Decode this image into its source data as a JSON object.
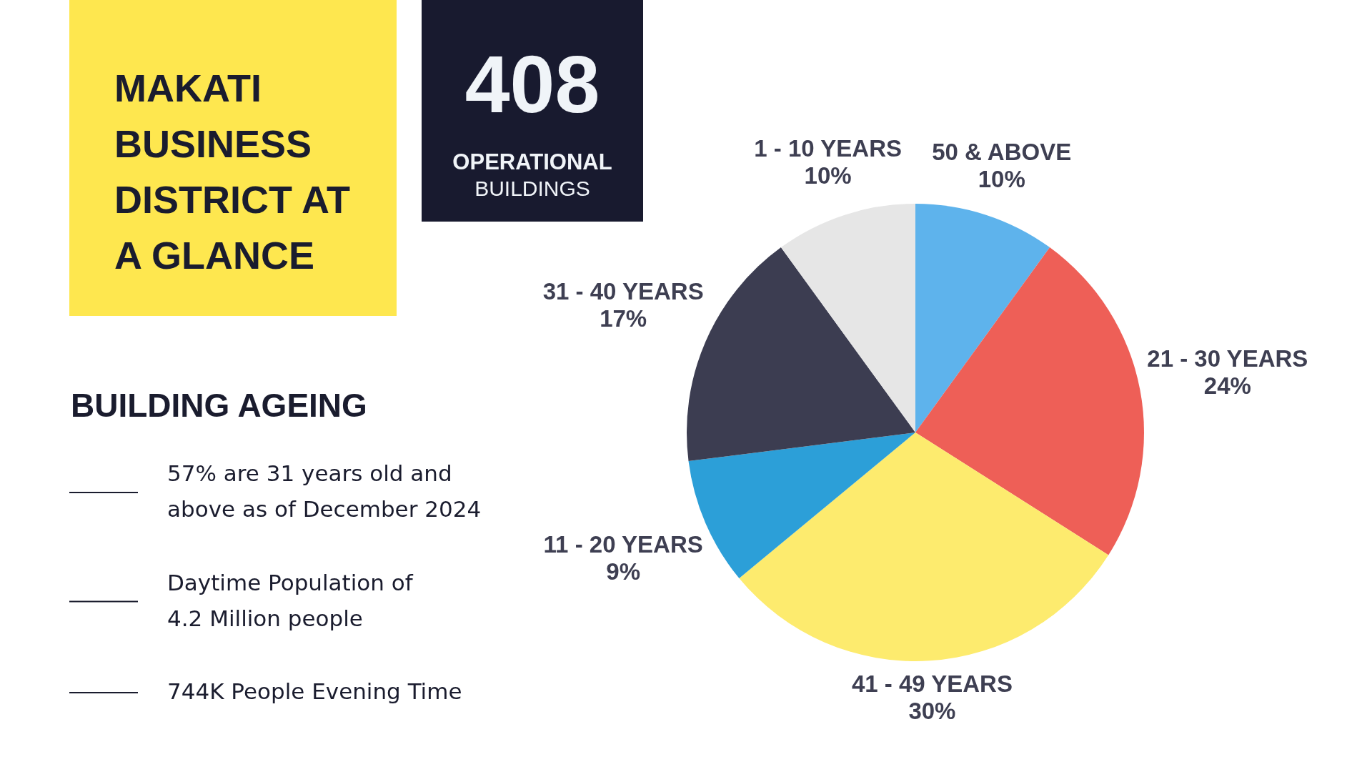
{
  "chart_data": {
    "type": "pie",
    "title": "MAKATI BUSINESS DISTRICT AT A GLANCE",
    "categories": [
      "50 & ABOVE",
      "21 - 30 YEARS",
      "41 - 49 YEARS",
      "11 - 20 YEARS",
      "31 - 40 YEARS",
      "1 - 10 YEARS"
    ],
    "values": [
      10,
      24,
      30,
      9,
      17,
      10
    ],
    "colors": [
      "#5eb3ec",
      "#ee5f57",
      "#fdeb6e",
      "#2c9fd8",
      "#3c3d51",
      "#e6e6e6"
    ],
    "value_labels": [
      "10%",
      "24%",
      "30%",
      "9%",
      "17%",
      "10%"
    ],
    "annotations": [
      "408",
      "OPERATIONAL",
      "BUILDINGS",
      "BUILDING AGEING",
      "57% are 31 years old and above as of December 2024",
      "Daytime Population of 4.2 Million people",
      "744K People Evening Time"
    ]
  }
}
